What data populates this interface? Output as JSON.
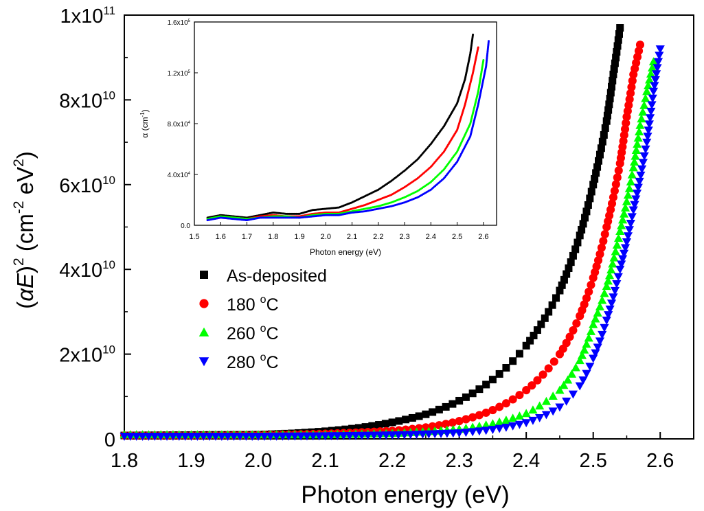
{
  "chart_data": [
    {
      "type": "scatter",
      "title": "",
      "xlabel": "Photon energy (eV)",
      "ylabel_parts": {
        "paren_open": "(",
        "var": "αE",
        "paren_close": ")",
        "exp": "2",
        "unit_open": " (cm",
        "unit_exp1": "-2",
        "unit_mid": " eV",
        "unit_exp2": "2",
        "unit_close": ")"
      },
      "xlim": [
        1.8,
        2.65
      ],
      "ylim": [
        0,
        100000000000.0
      ],
      "xticks": [
        1.8,
        1.9,
        2.0,
        2.1,
        2.2,
        2.3,
        2.4,
        2.5,
        2.6
      ],
      "xtick_labels": [
        "1.8",
        "1.9",
        "2.0",
        "2.1",
        "2.2",
        "2.3",
        "2.4",
        "2.5",
        "2.6"
      ],
      "yticks": [
        0,
        20000000000.0,
        40000000000.0,
        60000000000.0,
        80000000000.0,
        100000000000.0
      ],
      "ytick_labels": [
        {
          "base": "0",
          "exp": ""
        },
        {
          "base": "2x10",
          "exp": "10"
        },
        {
          "base": "4x10",
          "exp": "10"
        },
        {
          "base": "6x10",
          "exp": "10"
        },
        {
          "base": "8x10",
          "exp": "10"
        },
        {
          "base": "1x10",
          "exp": "11"
        }
      ],
      "legend_position": "center-left",
      "series": [
        {
          "name": "As-deposited",
          "name_base": "As-deposited",
          "name_sup": "",
          "name_tail": "",
          "marker": "square",
          "color": "#000000",
          "x": [
            1.8,
            1.9,
            2.0,
            2.05,
            2.1,
            2.15,
            2.2,
            2.25,
            2.3,
            2.35,
            2.4,
            2.45,
            2.48,
            2.5,
            2.52,
            2.53,
            2.54
          ],
          "y": [
            800000000.0,
            900000000.0,
            1000000000.0,
            1300000000.0,
            1800000000.0,
            2600000000.0,
            3900000000.0,
            5800000000.0,
            9000000000.0,
            14000000000.0,
            22000000000.0,
            35000000000.0,
            48000000000.0,
            60000000000.0,
            75000000000.0,
            86000000000.0,
            97000000000.0
          ]
        },
        {
          "name": "180 °C",
          "name_base": "180 ",
          "name_sup": "o",
          "name_tail": "C",
          "marker": "circle",
          "color": "#ff0000",
          "x": [
            1.8,
            1.9,
            2.0,
            2.1,
            2.2,
            2.25,
            2.3,
            2.35,
            2.4,
            2.45,
            2.48,
            2.5,
            2.52,
            2.54,
            2.55,
            2.56,
            2.57
          ],
          "y": [
            800000000.0,
            800000000.0,
            900000000.0,
            1200000000.0,
            1900000000.0,
            2700000000.0,
            4200000000.0,
            6800000000.0,
            11500000000.0,
            20000000000.0,
            29000000000.0,
            38000000000.0,
            50000000000.0,
            65000000000.0,
            76000000000.0,
            86000000000.0,
            93000000000.0
          ]
        },
        {
          "name": "260 °C",
          "name_base": "260 ",
          "name_sup": "o",
          "name_tail": "C",
          "marker": "triangle-up",
          "color": "#00ff00",
          "x": [
            1.8,
            1.9,
            2.0,
            2.1,
            2.2,
            2.3,
            2.35,
            2.4,
            2.45,
            2.48,
            2.5,
            2.52,
            2.54,
            2.56,
            2.57,
            2.58,
            2.59
          ],
          "y": [
            1000000000.0,
            1000000000.0,
            1000000000.0,
            1000000000.0,
            1300000000.0,
            2300000000.0,
            3600000000.0,
            6000000000.0,
            11500000000.0,
            18500000000.0,
            27000000000.0,
            36000000000.0,
            49000000000.0,
            64000000000.0,
            74000000000.0,
            82000000000.0,
            89000000000.0
          ]
        },
        {
          "name": "280 °C",
          "name_base": "280 ",
          "name_sup": "o",
          "name_tail": "C",
          "marker": "triangle-down",
          "color": "#0000ff",
          "x": [
            1.8,
            1.9,
            2.0,
            2.1,
            2.2,
            2.3,
            2.35,
            2.4,
            2.45,
            2.48,
            2.5,
            2.52,
            2.54,
            2.56,
            2.58,
            2.59,
            2.6
          ],
          "y": [
            600000000.0,
            600000000.0,
            600000000.0,
            700000000.0,
            900000000.0,
            1400000000.0,
            2200000000.0,
            3800000000.0,
            7500000000.0,
            12500000000.0,
            19000000000.0,
            28000000000.0,
            40000000000.0,
            54000000000.0,
            70000000000.0,
            82000000000.0,
            92000000000.0
          ]
        }
      ]
    },
    {
      "type": "scatter",
      "title": "",
      "xlabel": "Photon energy (eV)",
      "ylabel_base": "α (cm",
      "ylabel_exp": "-1",
      "ylabel_tail": ")",
      "xlim": [
        1.5,
        2.65
      ],
      "ylim": [
        0,
        160000.0
      ],
      "xticks": [
        1.5,
        1.6,
        1.7,
        1.8,
        1.9,
        2.0,
        2.1,
        2.2,
        2.3,
        2.4,
        2.5,
        2.6
      ],
      "xtick_labels": [
        "1.5",
        "1.6",
        "1.7",
        "1.8",
        "1.9",
        "2.0",
        "2.1",
        "2.2",
        "2.3",
        "2.4",
        "2.5",
        "2.6"
      ],
      "yticks": [
        0,
        40000,
        80000,
        120000,
        160000
      ],
      "ytick_labels": [
        {
          "base": "0.0",
          "exp": ""
        },
        {
          "base": "4.0x10",
          "exp": "4"
        },
        {
          "base": "8.0x10",
          "exp": "4"
        },
        {
          "base": "1.2x10",
          "exp": "5"
        },
        {
          "base": "1.6x10",
          "exp": "5"
        }
      ],
      "series": [
        {
          "name": "As-deposited",
          "color": "#000000",
          "x": [
            1.55,
            1.6,
            1.65,
            1.7,
            1.75,
            1.8,
            1.85,
            1.9,
            1.95,
            2.0,
            2.05,
            2.1,
            2.15,
            2.2,
            2.25,
            2.3,
            2.35,
            2.4,
            2.45,
            2.5,
            2.53,
            2.55,
            2.56
          ],
          "y": [
            6000,
            8000,
            7000,
            6000,
            8000,
            10000,
            9000,
            9000,
            12000,
            13000,
            14000,
            18000,
            23000,
            28000,
            35000,
            43000,
            52000,
            64000,
            78000,
            96000,
            115000,
            135000,
            150000
          ]
        },
        {
          "name": "180 °C",
          "color": "#ff0000",
          "x": [
            1.55,
            1.6,
            1.65,
            1.7,
            1.75,
            1.8,
            1.85,
            1.9,
            1.95,
            2.0,
            2.05,
            2.1,
            2.15,
            2.2,
            2.25,
            2.3,
            2.35,
            2.4,
            2.45,
            2.5,
            2.53,
            2.56,
            2.58
          ],
          "y": [
            5000,
            7000,
            6000,
            5000,
            7000,
            8000,
            7000,
            7000,
            9000,
            10000,
            10000,
            13000,
            16000,
            20000,
            24000,
            30000,
            37000,
            46000,
            58000,
            75000,
            95000,
            120000,
            140000
          ]
        },
        {
          "name": "260 °C",
          "color": "#00ff00",
          "x": [
            1.55,
            1.6,
            1.65,
            1.7,
            1.75,
            1.8,
            1.85,
            1.9,
            1.95,
            2.0,
            2.05,
            2.1,
            2.15,
            2.2,
            2.25,
            2.3,
            2.35,
            2.4,
            2.45,
            2.5,
            2.55,
            2.58,
            2.6
          ],
          "y": [
            5000,
            7000,
            6000,
            5000,
            6000,
            7000,
            7000,
            6000,
            8000,
            9000,
            9000,
            11000,
            13000,
            15000,
            18000,
            22000,
            27000,
            34000,
            44000,
            58000,
            80000,
            105000,
            130000
          ]
        },
        {
          "name": "280 °C",
          "color": "#0000ff",
          "x": [
            1.55,
            1.6,
            1.65,
            1.7,
            1.75,
            1.8,
            1.85,
            1.9,
            1.95,
            2.0,
            2.05,
            2.1,
            2.15,
            2.2,
            2.25,
            2.3,
            2.35,
            2.4,
            2.45,
            2.5,
            2.55,
            2.58,
            2.61,
            2.62
          ],
          "y": [
            4000,
            6000,
            5000,
            4000,
            6000,
            6000,
            6000,
            6000,
            7000,
            8000,
            8000,
            10000,
            11000,
            13000,
            15000,
            18000,
            22000,
            28000,
            37000,
            50000,
            70000,
            95000,
            125000,
            145000
          ]
        }
      ]
    }
  ]
}
